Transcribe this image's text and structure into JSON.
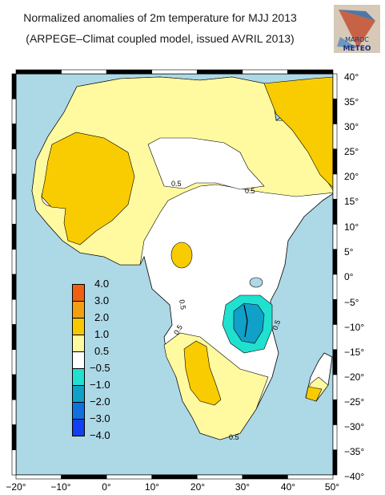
{
  "header": {
    "title": "Normalized anomalies of 2m temperature for MJJ 2013",
    "subtitle": "(ARPEGE–Climat coupled model, issued AVRIL 2013)"
  },
  "logo": {
    "line1": "MAROC",
    "line2": "METEO"
  },
  "axes": {
    "x_ticks": [
      "−20°",
      "−10°",
      "0°",
      "10°",
      "20°",
      "30°",
      "40°",
      "50°"
    ],
    "y_ticks": [
      "40°",
      "35°",
      "30°",
      "25°",
      "20°",
      "15°",
      "10°",
      "5°",
      "0°",
      "−5°",
      "−10°",
      "−15°",
      "−20°",
      "−25°",
      "−30°",
      "−35°",
      "−40°"
    ]
  },
  "legend": {
    "labels": [
      "4.0",
      "3.0",
      "2.0",
      "1.0",
      "0.5",
      "−0.5",
      "−1.0",
      "−2.0",
      "−3.0",
      "−4.0"
    ],
    "colors": [
      "#f06010",
      "#f2a010",
      "#f6c800",
      "#fffaa0",
      "#ffffff",
      "#20e0d0",
      "#10a0c8",
      "#1070e0",
      "#1040f0"
    ]
  },
  "contour_labels": [
    "0.5",
    "0.5",
    "0.5",
    "0.5",
    "0.5",
    "0.5"
  ],
  "colors": {
    "ocean": "#add8e6",
    "land_neutral": "#ffffff",
    "pale_yellow": "#fffaa0",
    "gold": "#f8cc00"
  }
}
